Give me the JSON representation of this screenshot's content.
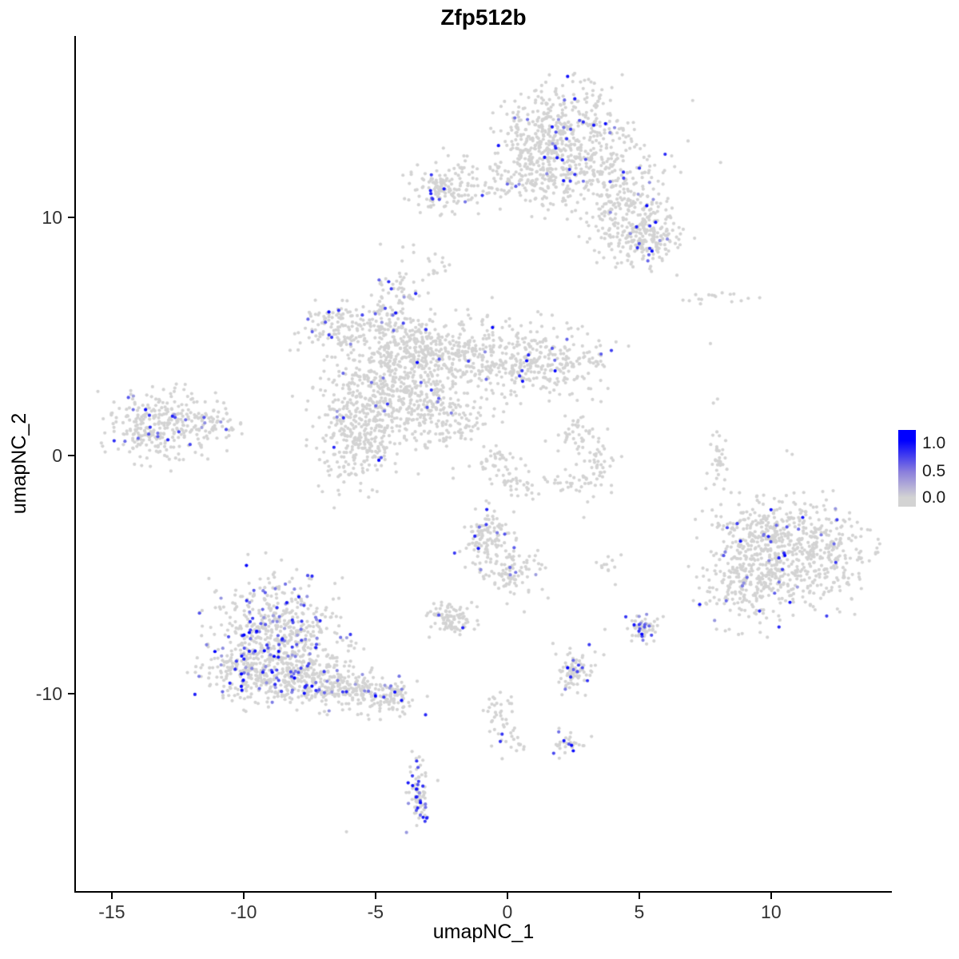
{
  "chart_data": {
    "type": "scatter",
    "title": "Zfp512b",
    "subtitle": "",
    "xlabel": "umapNC_1",
    "ylabel": "umapNC_2",
    "xlim": [
      -16.36,
      14.55
    ],
    "ylim": [
      -18.29,
      17.62
    ],
    "x_ticks": [
      -15,
      -10,
      -5,
      0,
      5,
      10
    ],
    "x_tick_labels": [
      "-15",
      "-10",
      "-5",
      "0",
      "5",
      "10"
    ],
    "y_ticks": [
      10,
      0,
      -10
    ],
    "y_tick_labels": [
      "10",
      "0",
      "-10"
    ],
    "grid": false,
    "legend_position": "right",
    "legend_labels": [
      "1.0",
      "0.5",
      "0.0"
    ],
    "legend_values": [
      1.0,
      0.5,
      0.0
    ],
    "colors": {
      "low": "#d3d3d3",
      "mid": "#8c80dc",
      "high": "#0000ff",
      "background": "#ffffff",
      "axis": "#000000",
      "tick_text": "#333333"
    },
    "point_radius_px": 2.1,
    "seed": 42,
    "clusters": [
      {
        "name": "top-main-upper",
        "x": 2.1,
        "y": 13.9,
        "sx": 1.15,
        "sy": 0.95,
        "n": 320,
        "expr_frac": 0.05
      },
      {
        "name": "top-main-mid",
        "x": 2.9,
        "y": 11.9,
        "sx": 1.5,
        "sy": 0.85,
        "n": 300,
        "expr_frac": 0.05
      },
      {
        "name": "top-arm-right1",
        "x": 4.6,
        "y": 10.0,
        "sx": 0.9,
        "sy": 0.8,
        "n": 200,
        "expr_frac": 0.06
      },
      {
        "name": "top-arm-right2",
        "x": 5.3,
        "y": 9.0,
        "sx": 0.65,
        "sy": 0.6,
        "n": 150,
        "expr_frac": 0.07
      },
      {
        "name": "top-arm-left",
        "x": 0.3,
        "y": 11.5,
        "sx": 1.2,
        "sy": 0.45,
        "n": 110,
        "expr_frac": 0.04
      },
      {
        "name": "top-left-blob",
        "x": -2.4,
        "y": 11.3,
        "sx": 0.6,
        "sy": 0.5,
        "n": 140,
        "expr_frac": 0.04
      },
      {
        "name": "top-bridge",
        "x": 1.0,
        "y": 13.0,
        "sx": 0.6,
        "sy": 0.8,
        "n": 90,
        "expr_frac": 0.04
      },
      {
        "name": "central-branch-up",
        "x": -4.2,
        "y": 6.2,
        "sx": 0.45,
        "sy": 0.9,
        "n": 110,
        "expr_frac": 0.05
      },
      {
        "name": "central-arm-left",
        "x": -6.4,
        "y": 5.4,
        "sx": 0.8,
        "sy": 0.5,
        "n": 140,
        "expr_frac": 0.08
      },
      {
        "name": "central-upper",
        "x": -3.4,
        "y": 4.4,
        "sx": 0.8,
        "sy": 0.7,
        "n": 220,
        "expr_frac": 0.02
      },
      {
        "name": "central-right1",
        "x": -1.2,
        "y": 4.2,
        "sx": 1.1,
        "sy": 0.8,
        "n": 260,
        "expr_frac": 0.02
      },
      {
        "name": "central-right2",
        "x": 1.6,
        "y": 3.9,
        "sx": 1.25,
        "sy": 0.75,
        "n": 240,
        "expr_frac": 0.03
      },
      {
        "name": "central-main",
        "x": -4.6,
        "y": 2.7,
        "sx": 1.1,
        "sy": 1.1,
        "n": 420,
        "expr_frac": 0.02
      },
      {
        "name": "central-lower-left",
        "x": -5.7,
        "y": 0.8,
        "sx": 0.8,
        "sy": 1.0,
        "n": 260,
        "expr_frac": 0.03
      },
      {
        "name": "central-lower-mid",
        "x": -2.2,
        "y": 1.6,
        "sx": 0.9,
        "sy": 0.7,
        "n": 150,
        "expr_frac": 0.02
      },
      {
        "name": "central-streak-a",
        "x": -0.5,
        "y": -0.3,
        "sx": 0.5,
        "sy": 0.3,
        "n": 40,
        "expr_frac": 0
      },
      {
        "name": "central-streak-b",
        "x": 0.5,
        "y": -1.3,
        "sx": 0.4,
        "sy": 0.3,
        "n": 30,
        "expr_frac": 0
      },
      {
        "name": "far-left-main",
        "x": -13.1,
        "y": 1.2,
        "sx": 1.0,
        "sy": 0.75,
        "n": 300,
        "expr_frac": 0.06
      },
      {
        "name": "far-left-tail",
        "x": -11.2,
        "y": 1.4,
        "sx": 0.5,
        "sy": 0.4,
        "n": 50,
        "expr_frac": 0.04
      },
      {
        "name": "mid-curve-a",
        "x": 2.6,
        "y": 0.9,
        "sx": 0.5,
        "sy": 0.4,
        "n": 40,
        "expr_frac": 0
      },
      {
        "name": "mid-curve-b",
        "x": 3.3,
        "y": -0.4,
        "sx": 0.5,
        "sy": 0.6,
        "n": 50,
        "expr_frac": 0
      },
      {
        "name": "mid-curve-c",
        "x": 2.4,
        "y": -1.2,
        "sx": 0.4,
        "sy": 0.3,
        "n": 25,
        "expr_frac": 0
      },
      {
        "name": "thin-arc",
        "x": 8.0,
        "y": 0.1,
        "sx": 0.18,
        "sy": 0.65,
        "n": 35,
        "expr_frac": 0
      },
      {
        "name": "right-main",
        "x": 10.7,
        "y": -4.3,
        "sx": 1.35,
        "sy": 1.1,
        "n": 500,
        "expr_frac": 0.02
      },
      {
        "name": "right-left-lobe",
        "x": 8.8,
        "y": -5.2,
        "sx": 0.7,
        "sy": 0.9,
        "n": 160,
        "expr_frac": 0.03
      },
      {
        "name": "right-top-edge",
        "x": 10.2,
        "y": -2.9,
        "sx": 1.25,
        "sy": 0.5,
        "n": 140,
        "expr_frac": 0.04
      },
      {
        "name": "right-east-edge",
        "x": 12.6,
        "y": -4.0,
        "sx": 0.5,
        "sy": 0.8,
        "n": 60,
        "expr_frac": 0.02
      },
      {
        "name": "bottomleft-main",
        "x": -8.7,
        "y": -7.6,
        "sx": 1.2,
        "sy": 1.1,
        "n": 550,
        "expr_frac": 0.16
      },
      {
        "name": "bottomleft-low",
        "x": -9.7,
        "y": -9.2,
        "sx": 0.8,
        "sy": 0.65,
        "n": 220,
        "expr_frac": 0.14
      },
      {
        "name": "bottomleft-tail1",
        "x": -7.6,
        "y": -9.4,
        "sx": 0.9,
        "sy": 0.55,
        "n": 200,
        "expr_frac": 0.12
      },
      {
        "name": "bottomleft-tail2",
        "x": -5.9,
        "y": -9.9,
        "sx": 0.8,
        "sy": 0.45,
        "n": 150,
        "expr_frac": 0.1
      },
      {
        "name": "bottomleft-tip",
        "x": -4.4,
        "y": -10.2,
        "sx": 0.5,
        "sy": 0.35,
        "n": 80,
        "expr_frac": 0.08
      },
      {
        "name": "midbottom-upper",
        "x": -0.7,
        "y": -3.6,
        "sx": 0.5,
        "sy": 0.7,
        "n": 130,
        "expr_frac": 0.06
      },
      {
        "name": "midbottom-lower",
        "x": 0.3,
        "y": -4.9,
        "sx": 0.55,
        "sy": 0.5,
        "n": 80,
        "expr_frac": 0.04
      },
      {
        "name": "dense-small",
        "x": -2.1,
        "y": -6.9,
        "sx": 0.38,
        "sy": 0.33,
        "n": 100,
        "expr_frac": 0.02
      },
      {
        "name": "small-southeast",
        "x": 2.5,
        "y": -9.0,
        "sx": 0.35,
        "sy": 0.5,
        "n": 80,
        "expr_frac": 0.12
      },
      {
        "name": "small-purple",
        "x": 5.1,
        "y": -7.3,
        "sx": 0.28,
        "sy": 0.33,
        "n": 55,
        "expr_frac": 0.3
      },
      {
        "name": "chain-a",
        "x": -0.3,
        "y": -10.6,
        "sx": 0.3,
        "sy": 0.3,
        "n": 25,
        "expr_frac": 0
      },
      {
        "name": "chain-b",
        "x": 0.0,
        "y": -11.8,
        "sx": 0.35,
        "sy": 0.35,
        "n": 25,
        "expr_frac": 0.05
      },
      {
        "name": "bottom-strip",
        "x": -3.35,
        "y": -14.3,
        "sx": 0.22,
        "sy": 0.7,
        "n": 75,
        "expr_frac": 0.3
      },
      {
        "name": "tiny-bottom",
        "x": 2.3,
        "y": -12.1,
        "sx": 0.3,
        "sy": 0.28,
        "n": 30,
        "expr_frac": 0.05
      },
      {
        "name": "topright-dots",
        "x": 8.6,
        "y": 6.6,
        "sx": 1.4,
        "sy": 0.2,
        "n": 16,
        "expr_frac": 0
      },
      {
        "name": "above-central-dots",
        "x": -2.6,
        "y": 8.0,
        "sx": 0.25,
        "sy": 0.4,
        "n": 14,
        "expr_frac": 0
      },
      {
        "name": "tiny-mid",
        "x": 3.8,
        "y": -4.7,
        "sx": 0.25,
        "sy": 0.25,
        "n": 12,
        "expr_frac": 0
      }
    ],
    "highlight_points": [
      {
        "x": 1.7,
        "y": 13.8,
        "e": 0.9
      },
      {
        "x": 2.4,
        "y": 13.7,
        "e": 0.7
      },
      {
        "x": 2.25,
        "y": 13.3,
        "e": 0.75
      },
      {
        "x": 4.4,
        "y": 11.9,
        "e": 0.8
      },
      {
        "x": 3.9,
        "y": 11.5,
        "e": 0.6
      },
      {
        "x": 4.9,
        "y": 9.6,
        "e": 0.85
      },
      {
        "x": 5.4,
        "y": 8.7,
        "e": 0.7
      },
      {
        "x": 5.0,
        "y": 8.9,
        "e": 0.6
      },
      {
        "x": -2.9,
        "y": 11.0,
        "e": 0.85
      },
      {
        "x": -2.4,
        "y": 11.2,
        "e": 0.9
      },
      {
        "x": 0.0,
        "y": 11.4,
        "e": 0.5
      },
      {
        "x": -4.5,
        "y": 7.3,
        "e": 0.8
      },
      {
        "x": -4.4,
        "y": 7.0,
        "e": 0.7
      },
      {
        "x": -6.9,
        "y": 5.6,
        "e": 0.6
      },
      {
        "x": -7.4,
        "y": 5.2,
        "e": 0.55
      },
      {
        "x": -5.5,
        "y": 5.9,
        "e": 0.65
      },
      {
        "x": 1.7,
        "y": 4.5,
        "e": 0.6
      },
      {
        "x": 1.8,
        "y": 4.0,
        "e": 0.5
      },
      {
        "x": -0.8,
        "y": 3.2,
        "e": 0.5
      },
      {
        "x": -2.6,
        "y": 2.4,
        "e": 0.55
      },
      {
        "x": -13.6,
        "y": 0.9,
        "e": 0.6
      },
      {
        "x": -12.6,
        "y": 1.6,
        "e": 0.65
      },
      {
        "x": -12.2,
        "y": 1.5,
        "e": 0.5
      },
      {
        "x": -11.5,
        "y": 1.6,
        "e": 0.6
      },
      {
        "x": -14.5,
        "y": 0.6,
        "e": 0.5
      },
      {
        "x": 11.2,
        "y": -2.6,
        "e": 0.9
      },
      {
        "x": 9.9,
        "y": -3.4,
        "e": 0.8
      },
      {
        "x": 10.6,
        "y": -3.0,
        "e": 0.6
      },
      {
        "x": 12.5,
        "y": -2.7,
        "e": 0.7
      },
      {
        "x": 8.2,
        "y": -4.2,
        "e": 0.6
      },
      {
        "x": 8.3,
        "y": -6.1,
        "e": 0.5
      },
      {
        "x": 10.3,
        "y": -7.2,
        "e": 0.8
      },
      {
        "x": -5.0,
        "y": -10.1,
        "e": 1.0
      },
      {
        "x": -1.1,
        "y": -3.9,
        "e": 0.9
      },
      {
        "x": -0.8,
        "y": -2.9,
        "e": 0.7
      },
      {
        "x": -0.1,
        "y": -3.3,
        "e": 0.6
      },
      {
        "x": 0.1,
        "y": -4.7,
        "e": 0.5
      },
      {
        "x": -2.6,
        "y": -6.7,
        "e": 0.6
      },
      {
        "x": 5.1,
        "y": -7.5,
        "e": 1.0
      },
      {
        "x": 5.0,
        "y": -7.1,
        "e": 0.7
      },
      {
        "x": 5.2,
        "y": -7.2,
        "e": 0.6
      },
      {
        "x": 2.4,
        "y": -9.3,
        "e": 0.8
      },
      {
        "x": 2.7,
        "y": -8.8,
        "e": 0.7
      },
      {
        "x": 2.5,
        "y": -8.6,
        "e": 0.5
      },
      {
        "x": -0.2,
        "y": -11.7,
        "e": 0.75
      },
      {
        "x": -3.4,
        "y": -14.8,
        "e": 0.85
      },
      {
        "x": -3.3,
        "y": -14.5,
        "e": 0.7
      },
      {
        "x": -3.45,
        "y": -14.9,
        "e": 0.6
      },
      {
        "x": -3.3,
        "y": -15.1,
        "e": 0.5
      },
      {
        "x": 2.5,
        "y": -12.4,
        "e": 0.95
      }
    ],
    "single_points": [
      {
        "x": -6.1,
        "y": -15.8
      },
      {
        "x": 3.7,
        "y": -7.3
      },
      {
        "x": 10.6,
        "y": 0.2
      },
      {
        "x": 10.8,
        "y": 0.05
      },
      {
        "x": 7.7,
        "y": 4.7
      },
      {
        "x": 6.9,
        "y": 6.5
      },
      {
        "x": 2.9,
        "y": -2.6
      }
    ]
  }
}
